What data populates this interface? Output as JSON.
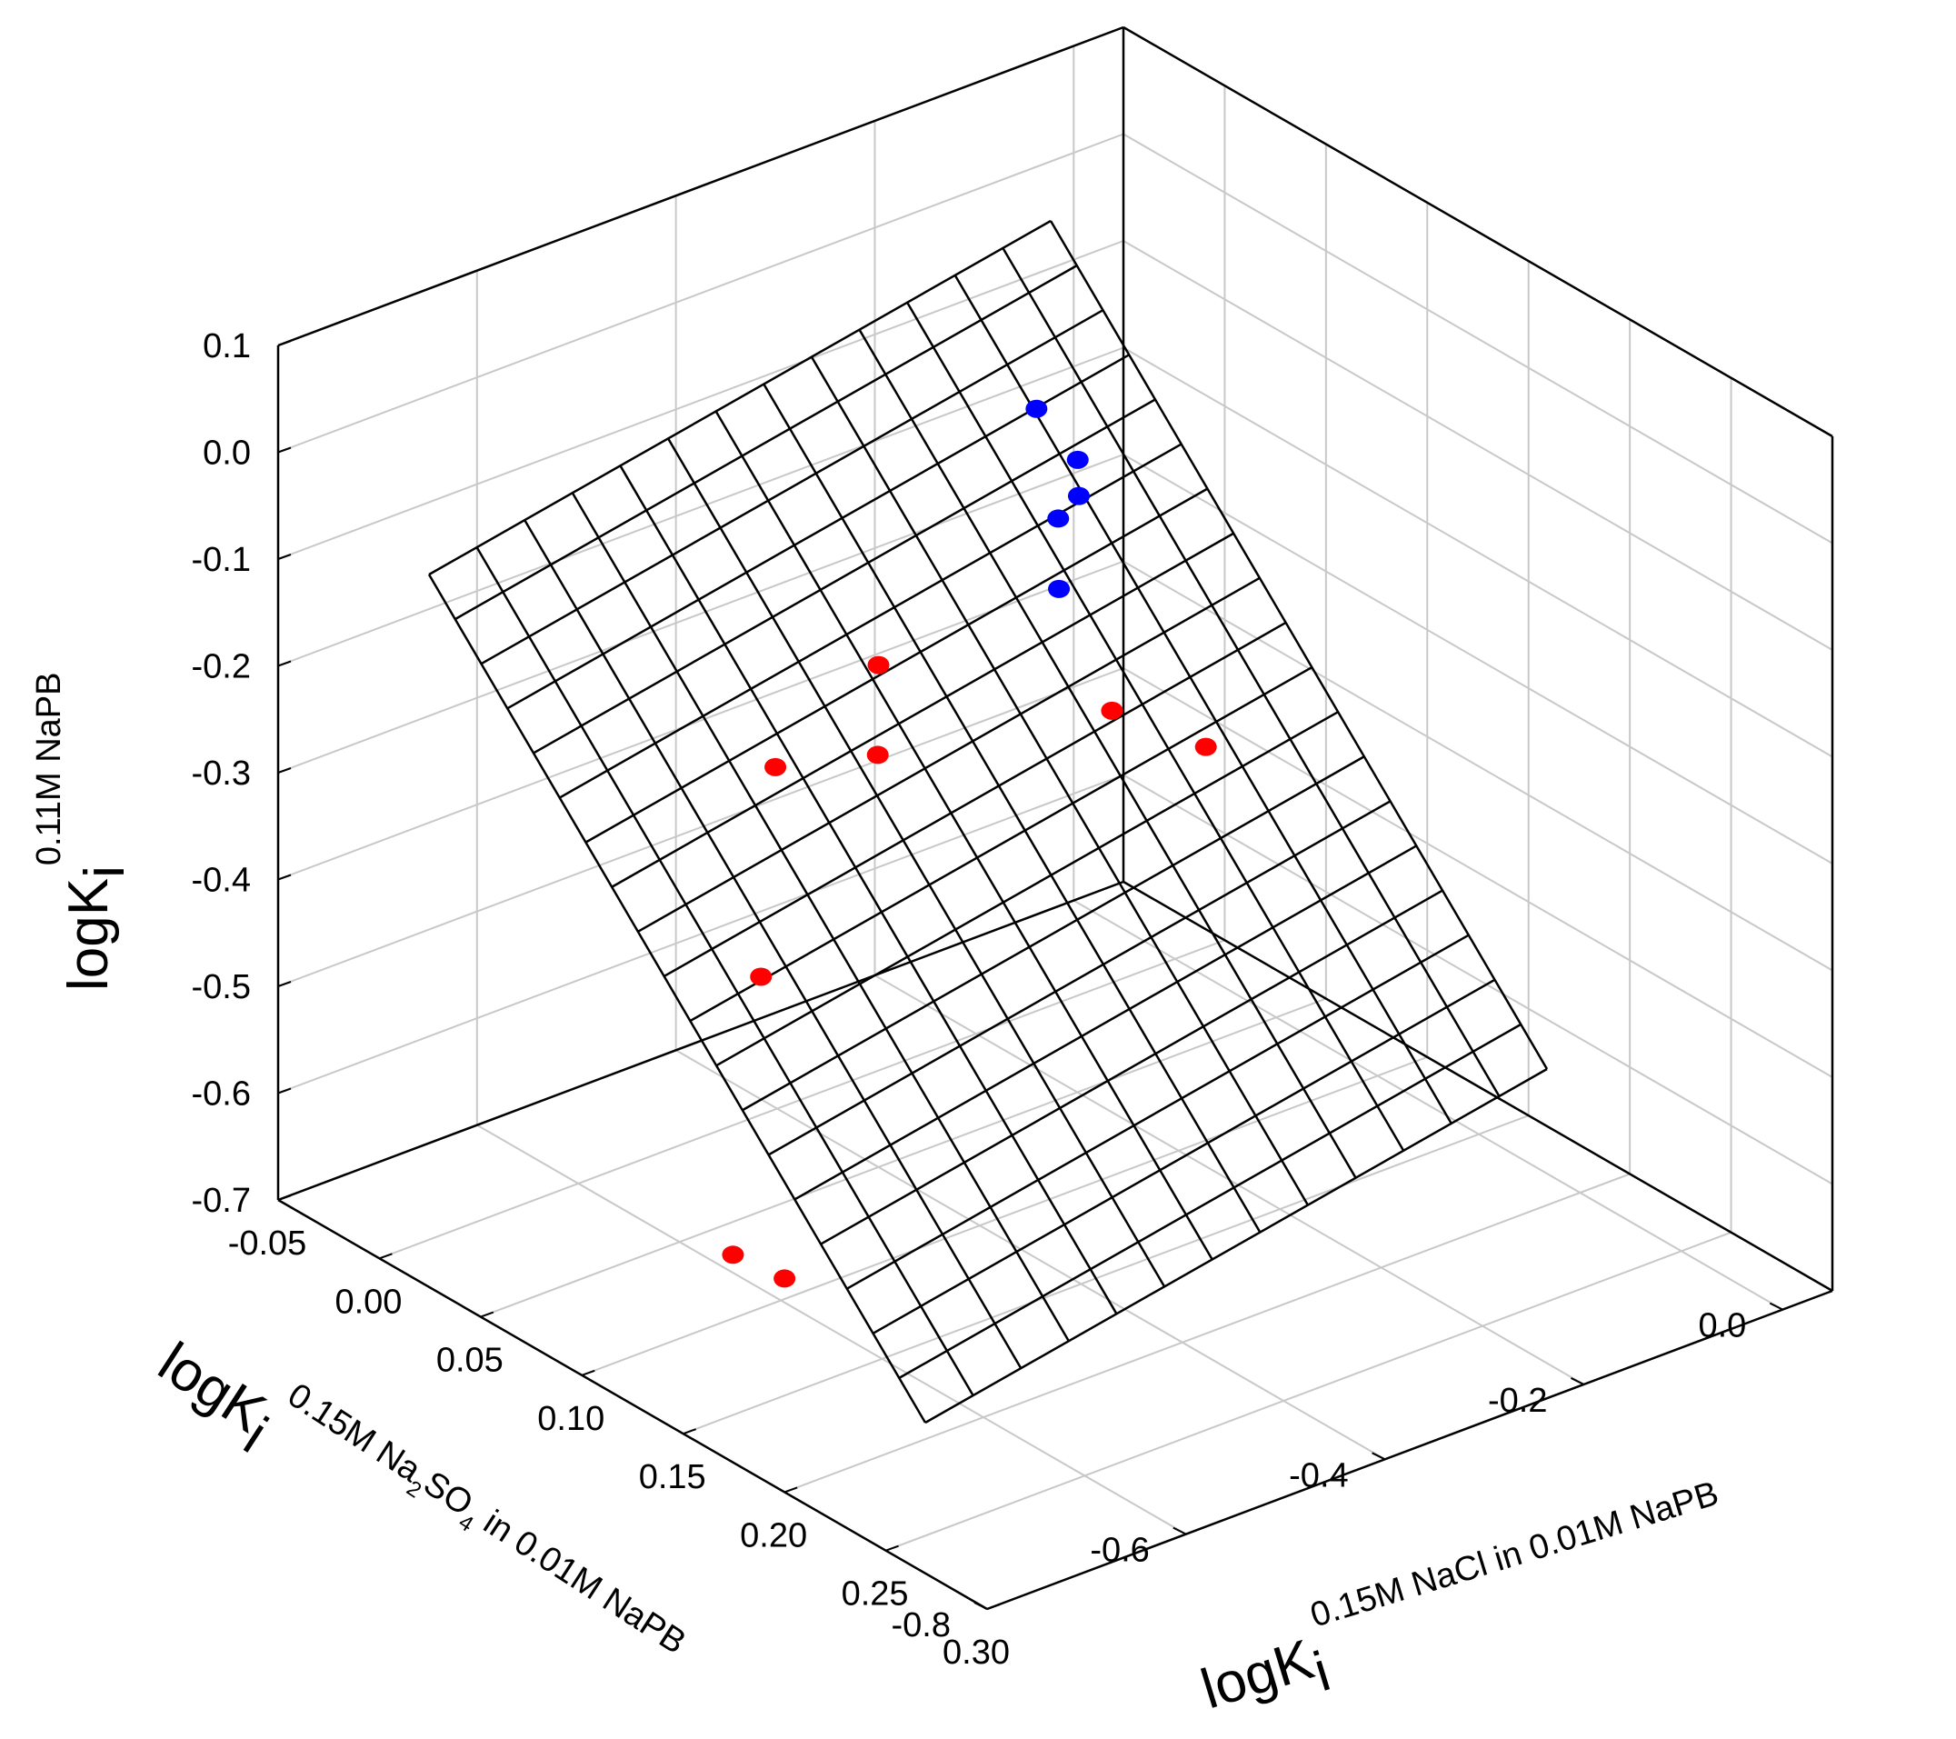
{
  "colors": {
    "background": "#ffffff",
    "frame": "#000000",
    "gridlines": "#c8c8c8",
    "surface_mesh": "#000000",
    "red_points": "#ff0000",
    "blue_points": "#0000ff"
  },
  "chart_data": {
    "type": "scatter3d",
    "grid": true,
    "z_axis": {
      "label_main": "logK",
      "label_sub": "i",
      "label_sup": "0.11M NaPB",
      "ticks": [
        "0.1",
        "0.0",
        "-0.1",
        "-0.2",
        "-0.3",
        "-0.4",
        "-0.5",
        "-0.6",
        "-0.7"
      ],
      "range": [
        -0.7,
        0.1
      ]
    },
    "y_axis": {
      "label_main": "logK",
      "label_sub": "i",
      "label_sup_parts": [
        "0.15M Na",
        "2",
        "SO",
        "4",
        " in 0.01M NaPB"
      ],
      "ticks": [
        "0.0",
        "-0.2",
        "-0.4",
        "-0.6",
        "-0.8"
      ],
      "range": [
        -0.8,
        0.05
      ]
    },
    "x_axis": {
      "label_main": "logK",
      "label_sub": "i",
      "label_sup": "0.15M NaCl in 0.01M NaPB",
      "ticks": [
        "-0.05",
        "0.00",
        "0.05",
        "0.10",
        "0.15",
        "0.20",
        "0.25",
        "0.30"
      ],
      "range": [
        -0.05,
        0.3
      ]
    },
    "surface": {
      "type": "fitted plane",
      "mesh_rows": 19,
      "mesh_cols": 13
    },
    "series": [
      {
        "color": "red",
        "points": [
          {
            "x": 0.3,
            "y": -0.58,
            "z": 0.03
          },
          {
            "x": 0.18,
            "y": -0.43,
            "z": -0.12
          },
          {
            "x": 0.05,
            "y": -0.4,
            "z": -0.23
          },
          {
            "x": 0.03,
            "y": -0.36,
            "z": -0.35
          },
          {
            "x": 0.1,
            "y": -0.62,
            "z": -0.39
          },
          {
            "x": -0.05,
            "y": -0.3,
            "z": -0.47
          },
          {
            "x": 0.15,
            "y": -0.75,
            "z": -0.55
          },
          {
            "x": 0.2,
            "y": -0.8,
            "z": -0.5
          }
        ]
      },
      {
        "color": "blue",
        "points": [
          {
            "x": 0.02,
            "y": -0.18,
            "z": -0.1
          },
          {
            "x": 0.06,
            "y": -0.22,
            "z": -0.09
          },
          {
            "x": 0.09,
            "y": -0.28,
            "z": -0.07
          },
          {
            "x": 0.07,
            "y": -0.26,
            "z": -0.12
          },
          {
            "x": 0.09,
            "y": -0.3,
            "z": -0.15
          }
        ]
      }
    ]
  }
}
